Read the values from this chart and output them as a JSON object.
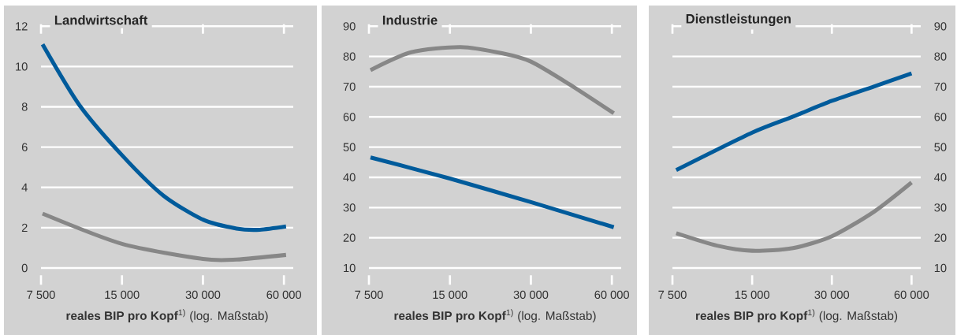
{
  "chart_data": [
    {
      "type": "line",
      "title": "Landwirtschaft",
      "xlabel": "**reales BIP pro Kopf**$^{1)}$ (log. Maßstab)",
      "log": "x",
      "grid": "y",
      "xlim": [
        7500,
        65000
      ],
      "ylim": [
        0,
        12
      ],
      "xticks": [
        {
          "value": 7500,
          "label": "7 500"
        },
        {
          "value": 15000,
          "label": "15 000"
        },
        {
          "value": 30000,
          "label": "30 000"
        },
        {
          "value": 60000,
          "label": "60 000"
        }
      ],
      "yticks": [
        0,
        2,
        4,
        6,
        8,
        10,
        12
      ],
      "series": [
        {
          "color": "#005b9b",
          "x": [
            7600,
            10400,
            15000,
            21350,
            30000,
            40000,
            48800,
            61100
          ],
          "values": [
            11.1,
            8.1,
            5.6,
            3.6,
            2.4,
            1.96,
            1.9,
            2.06
          ]
        },
        {
          "color": "#878787",
          "x": [
            7600,
            15000,
            30000,
            40000,
            61100
          ],
          "values": [
            2.7,
            1.2,
            0.45,
            0.42,
            0.65
          ]
        }
      ]
    },
    {
      "type": "line",
      "title": "Industrie",
      "xlabel": "**reales BIP pro Kopf**$^{1)}$ (log. Maßstab)",
      "log": "x",
      "grid": "y",
      "xlim": [
        7500,
        65000
      ],
      "ylim": [
        10,
        90
      ],
      "xticks": [
        {
          "value": 7500,
          "label": "7 500"
        },
        {
          "value": 15000,
          "label": "15 000"
        },
        {
          "value": 30000,
          "label": "30 000"
        },
        {
          "value": 60000,
          "label": "60 000"
        }
      ],
      "yticks": [
        10,
        20,
        30,
        40,
        50,
        60,
        70,
        80,
        90
      ],
      "series": [
        {
          "color": "#878787",
          "x": [
            7600,
            10770,
            16450,
            23600,
            30000,
            41350,
            61000
          ],
          "values": [
            75.5,
            81.4,
            83.1,
            81,
            78.3,
            71,
            61.2
          ]
        },
        {
          "color": "#005b9b",
          "x": [
            7600,
            15000,
            30000,
            61000
          ],
          "values": [
            46.6,
            39.6,
            31.8,
            23.5
          ]
        }
      ]
    },
    {
      "type": "line",
      "title": "Dienstleistungen",
      "xlabel": "**reales BIP pro Kopf**$^{1)}$ (log. Maßstab)",
      "log": "x",
      "grid": "y",
      "xlim": [
        7500,
        65000
      ],
      "ylim": [
        10,
        90
      ],
      "xticks": [
        {
          "value": 7500,
          "label": "7 500"
        },
        {
          "value": 15000,
          "label": "15 000"
        },
        {
          "value": 30000,
          "label": "30 000"
        },
        {
          "value": 60000,
          "label": "60 000"
        }
      ],
      "yticks": [
        10,
        20,
        30,
        40,
        50,
        60,
        70,
        80,
        90
      ],
      "series": [
        {
          "color": "#005b9b",
          "x": [
            7750,
            15000,
            21400,
            30000,
            43400,
            60000
          ],
          "values": [
            42.4,
            54.8,
            60.1,
            65.3,
            70.1,
            74.4
          ]
        },
        {
          "color": "#878787",
          "x": [
            7750,
            11050,
            15000,
            21400,
            30000,
            43400,
            60000
          ],
          "values": [
            21.5,
            17.4,
            15.7,
            16.6,
            20.5,
            28.7,
            38.3
          ]
        }
      ]
    }
  ]
}
